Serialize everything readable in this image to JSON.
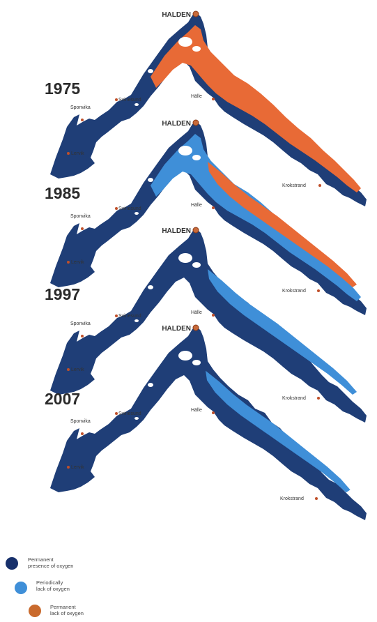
{
  "legend": [
    {
      "line1": "Permanent",
      "line2": "presence of oxygen",
      "color": "#17306b"
    },
    {
      "line1": "Periodically",
      "line2": "lack of oxygen",
      "color": "#3f8fd8"
    },
    {
      "line1": "Permanent",
      "line2": "lack of oxygen",
      "color": "#c96a2d"
    }
  ],
  "colors": {
    "fjord": "#1f3e77",
    "periodic": "#3f8fd8",
    "anoxic": "#e86a36"
  },
  "panels": [
    {
      "year": "1975",
      "halden": "HALDEN",
      "places": {
        "svinesund": "Svinesund",
        "sponvika": "Sponvika",
        "lervik": "Lervik",
        "halle": "Hälle",
        "krokstrand": "Krokstrand"
      },
      "condition": "anoxic"
    },
    {
      "year": "1985",
      "halden": "HALDEN",
      "places": {
        "svinesund": "Svinesund",
        "sponvika": "Sponvika",
        "lervik": "Lervik",
        "halle": "Hälle",
        "krokstrand": "Krokstrand"
      },
      "condition": "mixed"
    },
    {
      "year": "1997",
      "halden": "HALDEN",
      "places": {
        "svinesund": "Svinesund",
        "sponvika": "Sponvika",
        "lervik": "Lervik",
        "halle": "Hälle",
        "krokstrand": "Krokstrand"
      },
      "condition": "periodic"
    },
    {
      "year": "2007",
      "halden": "HALDEN",
      "places": {
        "svinesund": "Svinesund",
        "sponvika": "Sponvika",
        "lervik": "Lervik",
        "halle": "Hälle",
        "krokstrand": "Krokstrand"
      },
      "condition": "periodic-thin"
    }
  ]
}
